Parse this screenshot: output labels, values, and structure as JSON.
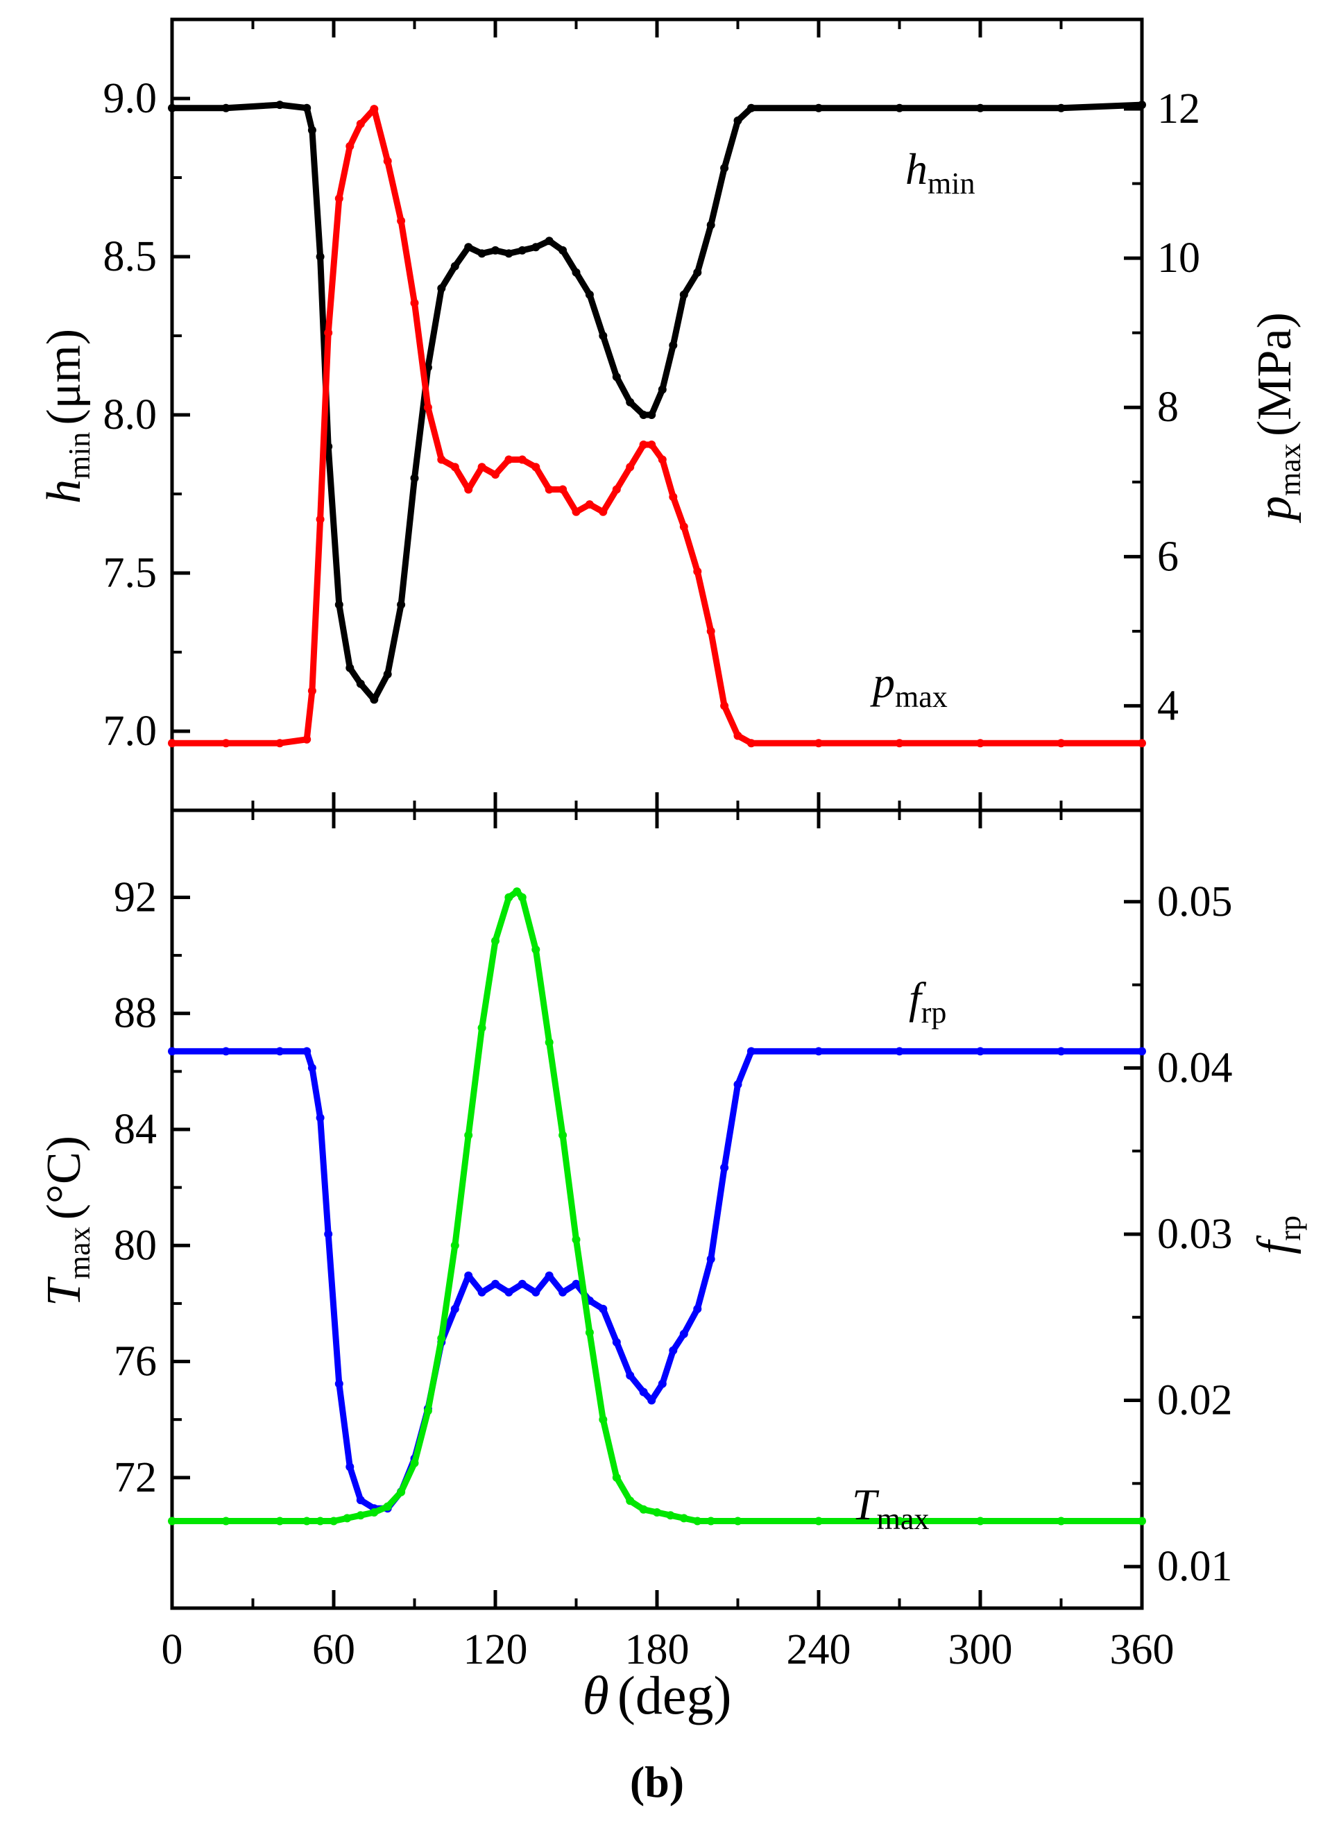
{
  "figure_label": "(b)",
  "colors": {
    "h_min": "#000000",
    "p_max": "#ff0000",
    "f_rp": "#0000ff",
    "T_max": "#00e600",
    "axes": "#000000",
    "background": "#ffffff"
  },
  "chart_data": [
    {
      "type": "line",
      "panel": "top",
      "xlabel": "θ (deg)",
      "x_axis_title": {
        "symbol": "θ",
        "unit": "(deg)"
      },
      "xlim": [
        0,
        360
      ],
      "x_ticks": [
        "0",
        "60",
        "120",
        "180",
        "240",
        "300",
        "360"
      ],
      "y_left": {
        "label": "hmin (μm)",
        "symbol": "h",
        "sub": "min",
        "unit": "(μm)",
        "ylim": [
          6.75,
          9.25
        ],
        "ticks": [
          "7.0",
          "7.5",
          "8.0",
          "8.5",
          "9.0"
        ]
      },
      "y_right": {
        "label": "pmax (MPa)",
        "symbol": "p",
        "sub": "max",
        "unit": "(MPa)",
        "ylim": [
          2.6,
          13.2
        ],
        "ticks": [
          "4",
          "6",
          "8",
          "10",
          "12"
        ]
      },
      "series": [
        {
          "name": "hmin",
          "symbol": "h",
          "sub": "min",
          "axis": "left",
          "color": "#000000",
          "legend_pos": "top-right",
          "x": [
            0,
            20,
            40,
            50,
            52,
            55,
            58,
            62,
            66,
            70,
            75,
            80,
            85,
            90,
            95,
            100,
            105,
            110,
            115,
            120,
            125,
            130,
            135,
            140,
            145,
            150,
            155,
            160,
            165,
            170,
            175,
            178,
            182,
            186,
            190,
            195,
            200,
            205,
            210,
            215,
            240,
            270,
            300,
            330,
            360
          ],
          "y": [
            8.97,
            8.97,
            8.98,
            8.97,
            8.9,
            8.5,
            7.9,
            7.4,
            7.2,
            7.15,
            7.1,
            7.18,
            7.4,
            7.8,
            8.15,
            8.4,
            8.47,
            8.53,
            8.51,
            8.52,
            8.51,
            8.52,
            8.53,
            8.55,
            8.52,
            8.45,
            8.38,
            8.25,
            8.12,
            8.04,
            8.0,
            8.0,
            8.08,
            8.22,
            8.38,
            8.45,
            8.6,
            8.78,
            8.93,
            8.97,
            8.97,
            8.97,
            8.97,
            8.97,
            8.98
          ]
        },
        {
          "name": "pmax",
          "symbol": "p",
          "sub": "max",
          "axis": "right",
          "color": "#ff0000",
          "legend_pos": "bottom-right",
          "x": [
            0,
            20,
            40,
            50,
            52,
            55,
            58,
            62,
            66,
            70,
            75,
            80,
            85,
            90,
            95,
            100,
            105,
            110,
            115,
            120,
            125,
            130,
            135,
            140,
            145,
            150,
            155,
            160,
            165,
            170,
            175,
            178,
            182,
            186,
            190,
            195,
            200,
            205,
            210,
            215,
            240,
            270,
            300,
            330,
            360
          ],
          "y": [
            3.5,
            3.5,
            3.5,
            3.55,
            4.2,
            6.5,
            9.0,
            10.8,
            11.5,
            11.8,
            12.0,
            11.3,
            10.5,
            9.4,
            8.0,
            7.3,
            7.2,
            6.9,
            7.2,
            7.1,
            7.3,
            7.3,
            7.2,
            6.9,
            6.9,
            6.6,
            6.7,
            6.6,
            6.9,
            7.2,
            7.5,
            7.5,
            7.3,
            6.8,
            6.4,
            5.8,
            5.0,
            4.0,
            3.6,
            3.5,
            3.5,
            3.5,
            3.5,
            3.5,
            3.5
          ]
        }
      ]
    },
    {
      "type": "line",
      "panel": "bottom",
      "xlabel": "θ (deg)",
      "xlim": [
        0,
        360
      ],
      "x_ticks": [
        "0",
        "60",
        "120",
        "180",
        "240",
        "300",
        "360"
      ],
      "y_left": {
        "label": "Tmax (°C)",
        "symbol": "T",
        "sub": "max",
        "unit": "(°C)",
        "ylim": [
          67.5,
          95.0
        ],
        "ticks": [
          "72",
          "76",
          "80",
          "84",
          "88",
          "92"
        ]
      },
      "y_right": {
        "label": "frp",
        "symbol": "f",
        "sub": "rp",
        "ylim": [
          0.0075,
          0.0555
        ],
        "ticks": [
          "0.01",
          "0.02",
          "0.03",
          "0.04",
          "0.05"
        ]
      },
      "series": [
        {
          "name": "frp",
          "symbol": "f",
          "sub": "rp",
          "axis": "right",
          "color": "#0000ff",
          "legend_pos": "top-right",
          "x": [
            0,
            20,
            40,
            50,
            52,
            55,
            58,
            62,
            66,
            70,
            75,
            80,
            85,
            90,
            95,
            100,
            105,
            110,
            115,
            120,
            125,
            130,
            135,
            140,
            145,
            150,
            155,
            160,
            165,
            170,
            175,
            178,
            182,
            186,
            190,
            195,
            200,
            205,
            210,
            215,
            240,
            270,
            300,
            330,
            360
          ],
          "y": [
            0.041,
            0.041,
            0.041,
            0.041,
            0.04,
            0.037,
            0.03,
            0.021,
            0.016,
            0.014,
            0.0135,
            0.0135,
            0.0145,
            0.0165,
            0.0195,
            0.0235,
            0.0255,
            0.0275,
            0.0265,
            0.027,
            0.0265,
            0.027,
            0.0265,
            0.0275,
            0.0265,
            0.027,
            0.026,
            0.0255,
            0.0235,
            0.0215,
            0.0205,
            0.02,
            0.021,
            0.023,
            0.024,
            0.0255,
            0.0285,
            0.034,
            0.039,
            0.041,
            0.041,
            0.041,
            0.041,
            0.041,
            0.041
          ]
        },
        {
          "name": "Tmax",
          "symbol": "T",
          "sub": "max",
          "axis": "left",
          "color": "#00e600",
          "legend_pos": "bottom-right",
          "x": [
            0,
            20,
            40,
            50,
            55,
            60,
            65,
            70,
            75,
            80,
            85,
            90,
            95,
            100,
            105,
            110,
            115,
            120,
            125,
            128,
            130,
            135,
            140,
            145,
            150,
            155,
            160,
            165,
            170,
            175,
            180,
            185,
            190,
            195,
            200,
            210,
            240,
            270,
            300,
            330,
            360
          ],
          "y": [
            70.5,
            70.5,
            70.5,
            70.5,
            70.5,
            70.5,
            70.6,
            70.7,
            70.8,
            71.0,
            71.5,
            72.5,
            74.3,
            76.8,
            80.0,
            83.8,
            87.5,
            90.5,
            92.0,
            92.2,
            92.0,
            90.2,
            87.0,
            83.8,
            80.2,
            77.0,
            74.0,
            72.0,
            71.2,
            70.9,
            70.8,
            70.7,
            70.6,
            70.5,
            70.5,
            70.5,
            70.5,
            70.5,
            70.5,
            70.5,
            70.5
          ]
        }
      ]
    }
  ]
}
